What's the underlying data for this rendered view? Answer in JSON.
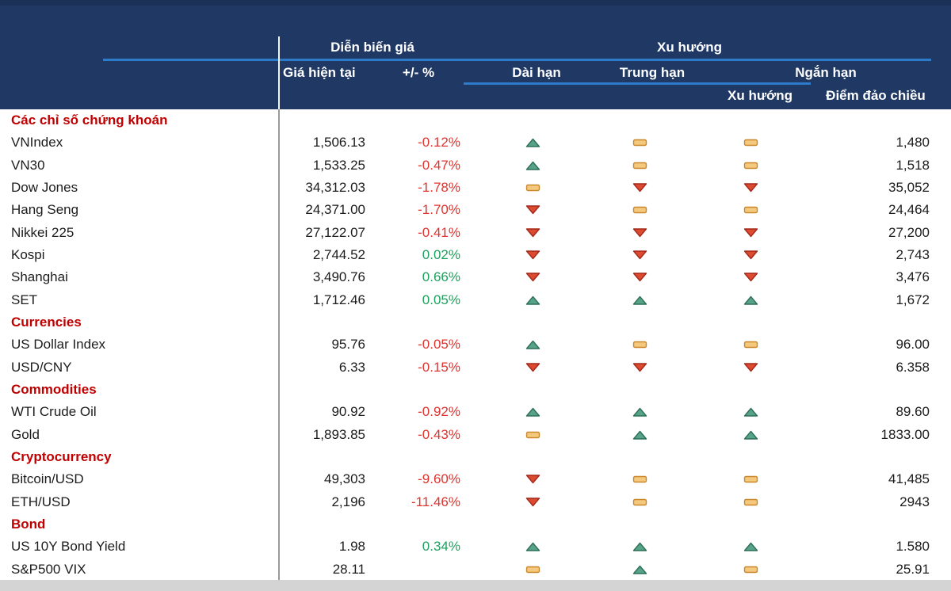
{
  "header": {
    "group_price": "Diễn biến giá",
    "group_trend": "Xu hướng",
    "col_current_price": "Giá hiện tại",
    "col_change_pct": "+/- %",
    "col_long_term": "Dài hạn",
    "col_mid_term": "Trung hạn",
    "col_short_term": "Ngắn hạn",
    "col_short_trend": "Xu hướng",
    "col_reversal_point": "Điểm đảo chiều"
  },
  "colors": {
    "header_bg": "#1f3864",
    "divider_blue": "#2e7cc9",
    "section_red": "#c00000",
    "negative_red": "#de3430",
    "positive_green": "#1ea15e",
    "icon_up_fill": "#57a389",
    "icon_up_stroke": "#2f6f57",
    "icon_down_fill": "#dc4a30",
    "icon_down_stroke": "#a3291c",
    "icon_flat_fill": "#f4c87d",
    "icon_flat_stroke": "#c9882b"
  },
  "sections": [
    {
      "label": "Các chỉ số chứng khoán",
      "rows": [
        {
          "name": "VNIndex",
          "price": "1,506.13",
          "pct": "-0.12%",
          "long": "up",
          "mid": "flat",
          "short": "flat",
          "reversal": "1,480"
        },
        {
          "name": "VN30",
          "price": "1,533.25",
          "pct": "-0.47%",
          "long": "up",
          "mid": "flat",
          "short": "flat",
          "reversal": "1,518"
        },
        {
          "name": "Dow Jones",
          "price": "34,312.03",
          "pct": "-1.78%",
          "long": "flat",
          "mid": "down",
          "short": "down",
          "reversal": "35,052"
        },
        {
          "name": "Hang Seng",
          "price": "24,371.00",
          "pct": "-1.70%",
          "long": "down",
          "mid": "flat",
          "short": "flat",
          "reversal": "24,464"
        },
        {
          "name": "Nikkei 225",
          "price": "27,122.07",
          "pct": "-0.41%",
          "long": "down",
          "mid": "down",
          "short": "down",
          "reversal": "27,200"
        },
        {
          "name": "Kospi",
          "price": "2,744.52",
          "pct": "0.02%",
          "long": "down",
          "mid": "down",
          "short": "down",
          "reversal": "2,743"
        },
        {
          "name": "Shanghai",
          "price": "3,490.76",
          "pct": "0.66%",
          "long": "down",
          "mid": "down",
          "short": "down",
          "reversal": "3,476"
        },
        {
          "name": "SET",
          "price": "1,712.46",
          "pct": "0.05%",
          "long": "up",
          "mid": "up",
          "short": "up",
          "reversal": "1,672"
        }
      ]
    },
    {
      "label": "Currencies",
      "rows": [
        {
          "name": "US Dollar Index",
          "price": "95.76",
          "pct": "-0.05%",
          "long": "up",
          "mid": "flat",
          "short": "flat",
          "reversal": "96.00"
        },
        {
          "name": "USD/CNY",
          "price": "6.33",
          "pct": "-0.15%",
          "long": "down",
          "mid": "down",
          "short": "down",
          "reversal": "6.358"
        }
      ]
    },
    {
      "label": "Commodities",
      "rows": [
        {
          "name": "WTI Crude Oil",
          "price": "90.92",
          "pct": "-0.92%",
          "long": "up",
          "mid": "up",
          "short": "up",
          "reversal": "89.60"
        },
        {
          "name": "Gold",
          "price": "1,893.85",
          "pct": "-0.43%",
          "long": "flat",
          "mid": "up",
          "short": "up",
          "reversal": "1833.00"
        }
      ]
    },
    {
      "label": "Cryptocurrency",
      "rows": [
        {
          "name": "Bitcoin/USD",
          "price": "49,303",
          "pct": "-9.60%",
          "long": "down",
          "mid": "flat",
          "short": "flat",
          "reversal": "41,485"
        },
        {
          "name": "ETH/USD",
          "price": "2,196",
          "pct": "-11.46%",
          "long": "down",
          "mid": "flat",
          "short": "flat",
          "reversal": "2943"
        }
      ]
    },
    {
      "label": "Bond",
      "rows": [
        {
          "name": "US 10Y Bond Yield",
          "price": "1.98",
          "pct": "0.34%",
          "long": "up",
          "mid": "up",
          "short": "up",
          "reversal": "1.580"
        },
        {
          "name": "S&P500 VIX",
          "price": "28.11",
          "pct": "",
          "long": "flat",
          "mid": "up",
          "short": "flat",
          "reversal": "25.91"
        }
      ]
    }
  ]
}
